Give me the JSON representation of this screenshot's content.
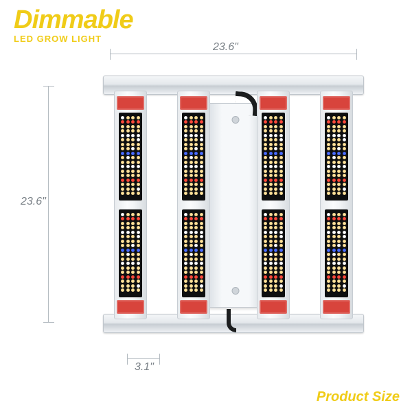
{
  "title": {
    "main": "Dimmable",
    "sub": "LED GROW LIGHT",
    "color": "#f0cc18"
  },
  "footer": {
    "label": "Product Size",
    "color": "#f0cc18"
  },
  "dimensions": {
    "width": {
      "value": "23.6\"",
      "color": "#7a8187"
    },
    "height": {
      "value": "23.6\"",
      "color": "#7a8187"
    },
    "bar_width": {
      "value": "3.1\"",
      "color": "#7a8187"
    }
  },
  "fixture": {
    "bars_count": 4,
    "rails_color": "#e4e8ec",
    "driver_color": "#f0f3f6",
    "bar": {
      "tip_color": "#d8443c",
      "aluminum_color": "#f2f4f6",
      "led_window_bg": "#0e0f10",
      "led_rows_per_window": 18,
      "led_cols": 4,
      "led_colors": {
        "warm": "#ffe29a",
        "white": "#ffffff",
        "red": "#ff4a3c",
        "blue": "#4a6cff"
      },
      "row_pattern": [
        "warm",
        "red",
        "warm",
        "warm",
        "white",
        "warm",
        "warm",
        "warm",
        "blue",
        "warm",
        "warm",
        "white",
        "warm",
        "warm",
        "red",
        "warm",
        "warm",
        "warm"
      ]
    }
  },
  "background_color": "#ffffff"
}
